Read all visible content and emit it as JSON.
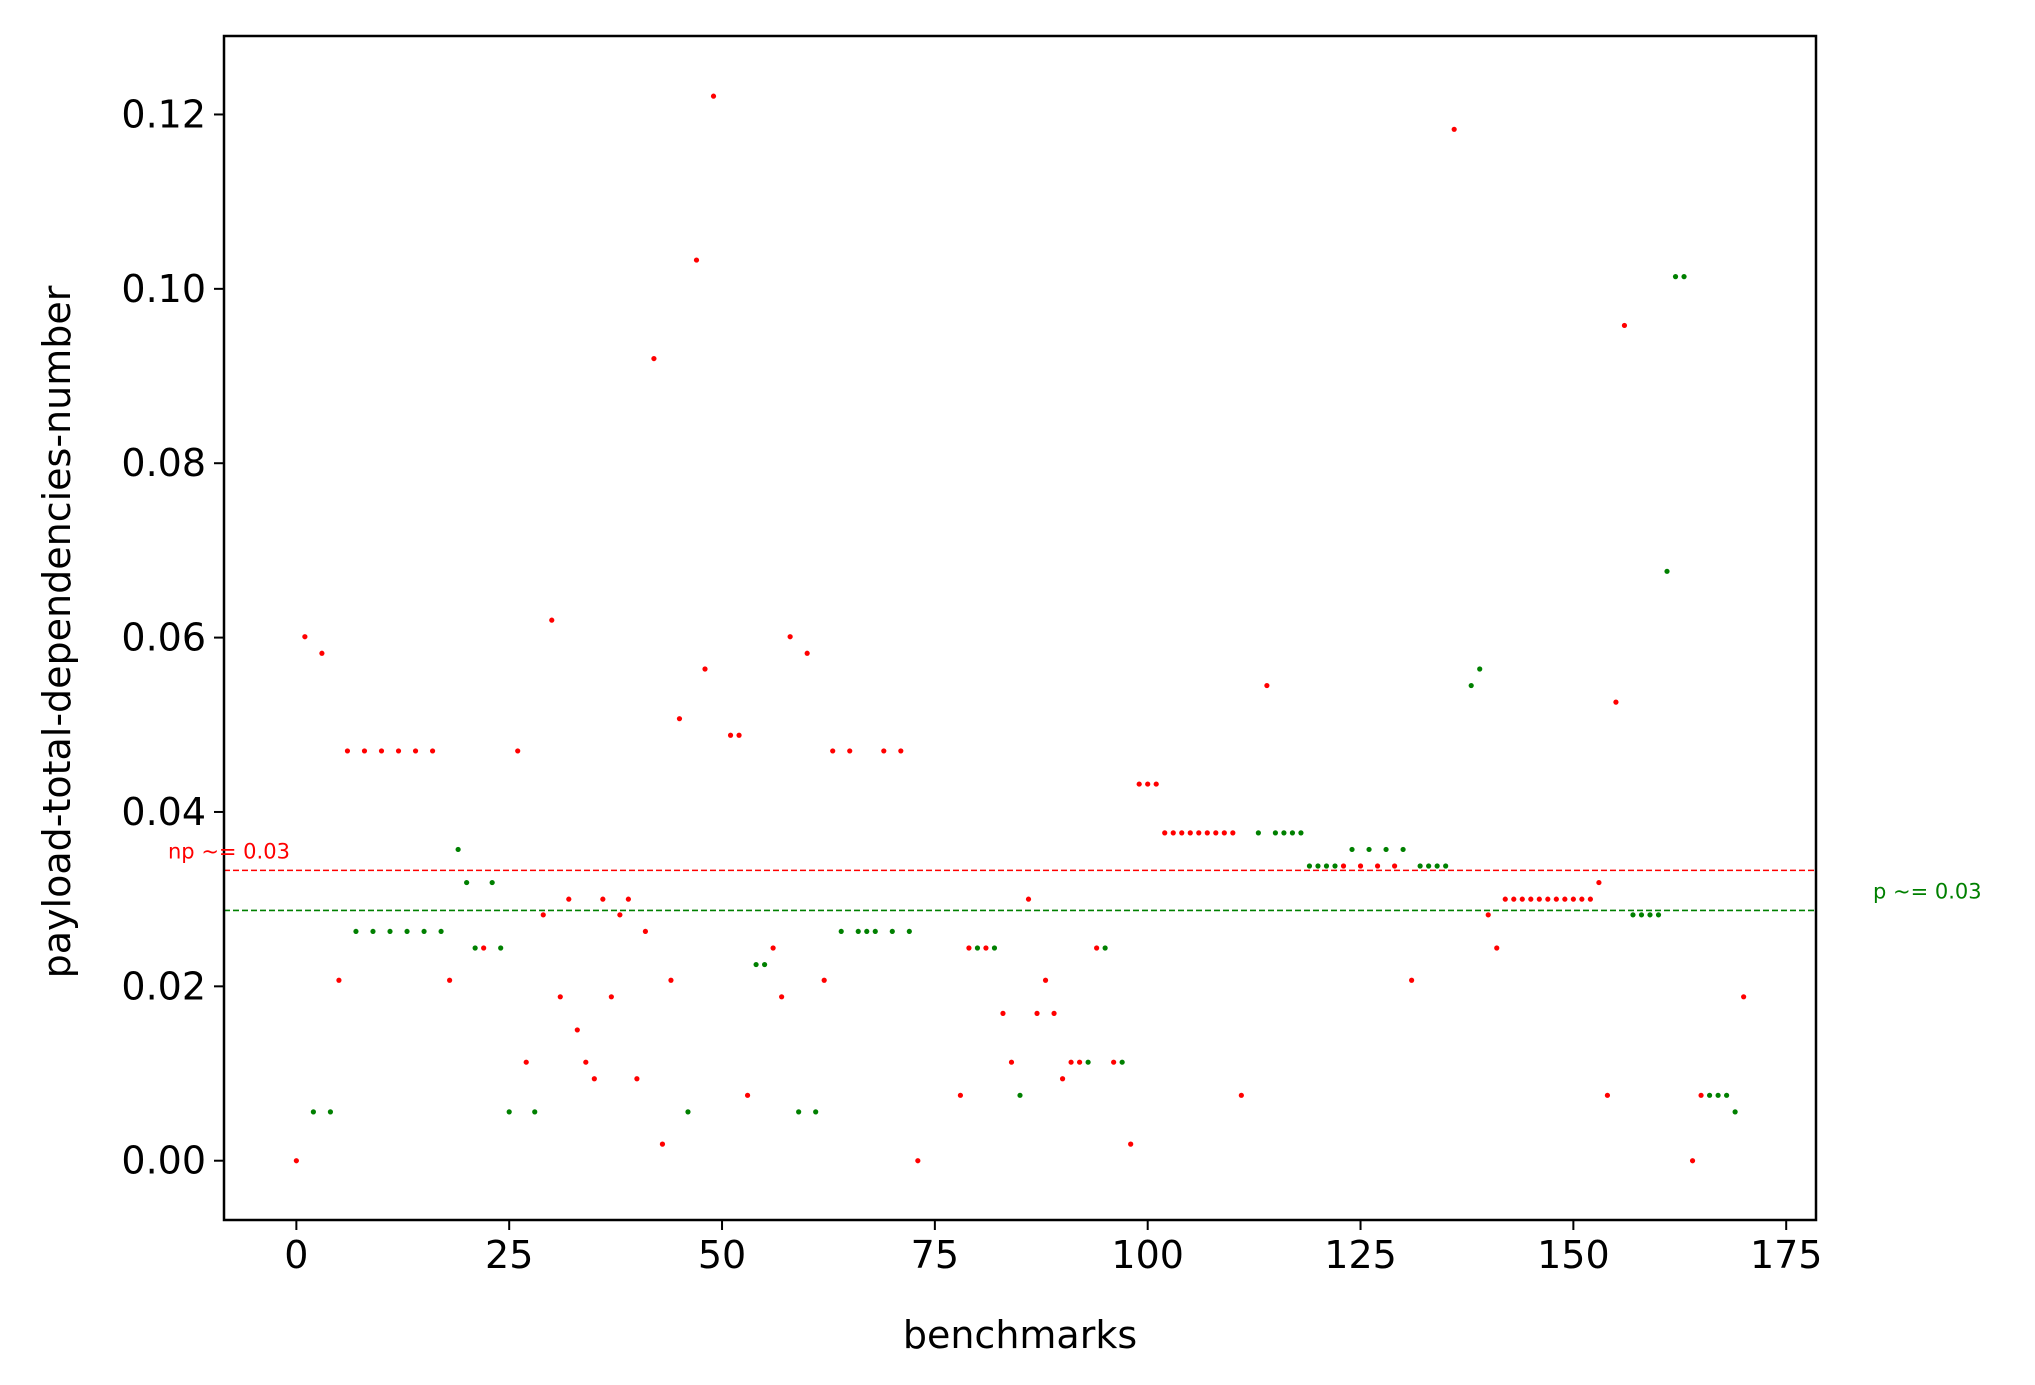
{
  "chart_data": {
    "type": "scatter",
    "title": "",
    "xlabel": "benchmarks",
    "ylabel": "payload-total-dependencies-number",
    "xlim": [
      -8.5,
      178.5
    ],
    "ylim": [
      -0.0068,
      0.129
    ],
    "x_ticks": [
      0,
      25,
      50,
      75,
      100,
      125,
      150,
      175
    ],
    "y_ticks": [
      0.0,
      0.02,
      0.04,
      0.06,
      0.08,
      0.1,
      0.12
    ],
    "x_tick_labels": [
      "0",
      "25",
      "50",
      "75",
      "100",
      "125",
      "150",
      "175"
    ],
    "y_tick_labels": [
      "0.00",
      "0.02",
      "0.04",
      "0.06",
      "0.08",
      "0.10",
      "0.12"
    ],
    "grid": false,
    "legend": "none",
    "colors": {
      "np": "#ff0000",
      "p": "#008000",
      "axis": "#000000"
    },
    "reference_lines": [
      {
        "label": "np ~= 0.03",
        "y": 0.0333,
        "color": "#ff0000",
        "label_side": "left"
      },
      {
        "label": "p ~= 0.03",
        "y": 0.0287,
        "color": "#008000",
        "label_side": "right"
      }
    ],
    "series": [
      {
        "color": "#ff0000",
        "points": [
          [
            0,
            0.0
          ],
          [
            1,
            0.0601
          ],
          [
            3,
            0.0582
          ],
          [
            5,
            0.0207
          ],
          [
            6,
            0.047
          ],
          [
            8,
            0.047
          ],
          [
            10,
            0.047
          ],
          [
            12,
            0.047
          ],
          [
            14,
            0.047
          ],
          [
            16,
            0.047
          ],
          [
            18,
            0.0207
          ],
          [
            22,
            0.0244
          ],
          [
            26,
            0.047
          ],
          [
            27,
            0.0113
          ],
          [
            29,
            0.0282
          ],
          [
            30,
            0.062
          ],
          [
            31,
            0.0188
          ],
          [
            32,
            0.03
          ],
          [
            33,
            0.015
          ],
          [
            34,
            0.0113
          ],
          [
            35,
            0.0094
          ],
          [
            36,
            0.03
          ],
          [
            37,
            0.0188
          ],
          [
            38,
            0.0282
          ],
          [
            39,
            0.03
          ],
          [
            40,
            0.0094
          ],
          [
            41,
            0.0263
          ],
          [
            42,
            0.092
          ],
          [
            43,
            0.0019
          ],
          [
            44,
            0.0207
          ],
          [
            45,
            0.0507
          ],
          [
            47,
            0.1033
          ],
          [
            48,
            0.0564
          ],
          [
            49,
            0.1221
          ],
          [
            51,
            0.0488
          ],
          [
            52,
            0.0488
          ],
          [
            53,
            0.0075
          ],
          [
            56,
            0.0244
          ],
          [
            57,
            0.0188
          ],
          [
            58,
            0.0601
          ],
          [
            60,
            0.0582
          ],
          [
            62,
            0.0207
          ],
          [
            63,
            0.047
          ],
          [
            65,
            0.047
          ],
          [
            69,
            0.047
          ],
          [
            71,
            0.047
          ],
          [
            73,
            0.0
          ],
          [
            78,
            0.0075
          ],
          [
            79,
            0.0244
          ],
          [
            81,
            0.0244
          ],
          [
            83,
            0.0169
          ],
          [
            84,
            0.0113
          ],
          [
            86,
            0.03
          ],
          [
            87,
            0.0169
          ],
          [
            88,
            0.0207
          ],
          [
            89,
            0.0169
          ],
          [
            90,
            0.0094
          ],
          [
            91,
            0.0113
          ],
          [
            92,
            0.0113
          ],
          [
            94,
            0.0244
          ],
          [
            96,
            0.0113
          ],
          [
            98,
            0.0019
          ],
          [
            99,
            0.0432
          ],
          [
            100,
            0.0432
          ],
          [
            101,
            0.0432
          ],
          [
            102,
            0.0376
          ],
          [
            103,
            0.0376
          ],
          [
            104,
            0.0376
          ],
          [
            105,
            0.0376
          ],
          [
            106,
            0.0376
          ],
          [
            107,
            0.0376
          ],
          [
            108,
            0.0376
          ],
          [
            109,
            0.0376
          ],
          [
            110,
            0.0376
          ],
          [
            111,
            0.0075
          ],
          [
            114,
            0.0545
          ],
          [
            123,
            0.0338
          ],
          [
            125,
            0.0338
          ],
          [
            127,
            0.0338
          ],
          [
            129,
            0.0338
          ],
          [
            131,
            0.0207
          ],
          [
            136,
            0.1183
          ],
          [
            140,
            0.0282
          ],
          [
            141,
            0.0244
          ],
          [
            142,
            0.03
          ],
          [
            143,
            0.03
          ],
          [
            144,
            0.03
          ],
          [
            145,
            0.03
          ],
          [
            146,
            0.03
          ],
          [
            147,
            0.03
          ],
          [
            148,
            0.03
          ],
          [
            149,
            0.03
          ],
          [
            150,
            0.03
          ],
          [
            151,
            0.03
          ],
          [
            152,
            0.03
          ],
          [
            153,
            0.0319
          ],
          [
            154,
            0.0075
          ],
          [
            155,
            0.0526
          ],
          [
            156,
            0.0958
          ],
          [
            164,
            0.0
          ],
          [
            165,
            0.0075
          ],
          [
            170,
            0.0188
          ]
        ]
      },
      {
        "color": "#008000",
        "points": [
          [
            2,
            0.0056
          ],
          [
            4,
            0.0056
          ],
          [
            7,
            0.0263
          ],
          [
            9,
            0.0263
          ],
          [
            11,
            0.0263
          ],
          [
            13,
            0.0263
          ],
          [
            15,
            0.0263
          ],
          [
            17,
            0.0263
          ],
          [
            19,
            0.0357
          ],
          [
            20,
            0.0319
          ],
          [
            21,
            0.0244
          ],
          [
            23,
            0.0319
          ],
          [
            24,
            0.0244
          ],
          [
            25,
            0.0056
          ],
          [
            28,
            0.0056
          ],
          [
            46,
            0.0056
          ],
          [
            54,
            0.0225
          ],
          [
            55,
            0.0225
          ],
          [
            59,
            0.0056
          ],
          [
            61,
            0.0056
          ],
          [
            64,
            0.0263
          ],
          [
            66,
            0.0263
          ],
          [
            67,
            0.0263
          ],
          [
            68,
            0.0263
          ],
          [
            70,
            0.0263
          ],
          [
            72,
            0.0263
          ],
          [
            80,
            0.0244
          ],
          [
            82,
            0.0244
          ],
          [
            85,
            0.0075
          ],
          [
            93,
            0.0113
          ],
          [
            95,
            0.0244
          ],
          [
            97,
            0.0113
          ],
          [
            113,
            0.0376
          ],
          [
            115,
            0.0376
          ],
          [
            116,
            0.0376
          ],
          [
            117,
            0.0376
          ],
          [
            118,
            0.0376
          ],
          [
            119,
            0.0338
          ],
          [
            120,
            0.0338
          ],
          [
            121,
            0.0338
          ],
          [
            122,
            0.0338
          ],
          [
            124,
            0.0357
          ],
          [
            126,
            0.0357
          ],
          [
            128,
            0.0357
          ],
          [
            130,
            0.0357
          ],
          [
            132,
            0.0338
          ],
          [
            133,
            0.0338
          ],
          [
            134,
            0.0338
          ],
          [
            135,
            0.0338
          ],
          [
            138,
            0.0545
          ],
          [
            139,
            0.0564
          ],
          [
            157,
            0.0282
          ],
          [
            158,
            0.0282
          ],
          [
            159,
            0.0282
          ],
          [
            160,
            0.0282
          ],
          [
            161,
            0.0676
          ],
          [
            162,
            0.1014
          ],
          [
            163,
            0.1014
          ],
          [
            166,
            0.0075
          ],
          [
            167,
            0.0075
          ],
          [
            168,
            0.0075
          ],
          [
            169,
            0.0056
          ]
        ]
      }
    ]
  }
}
